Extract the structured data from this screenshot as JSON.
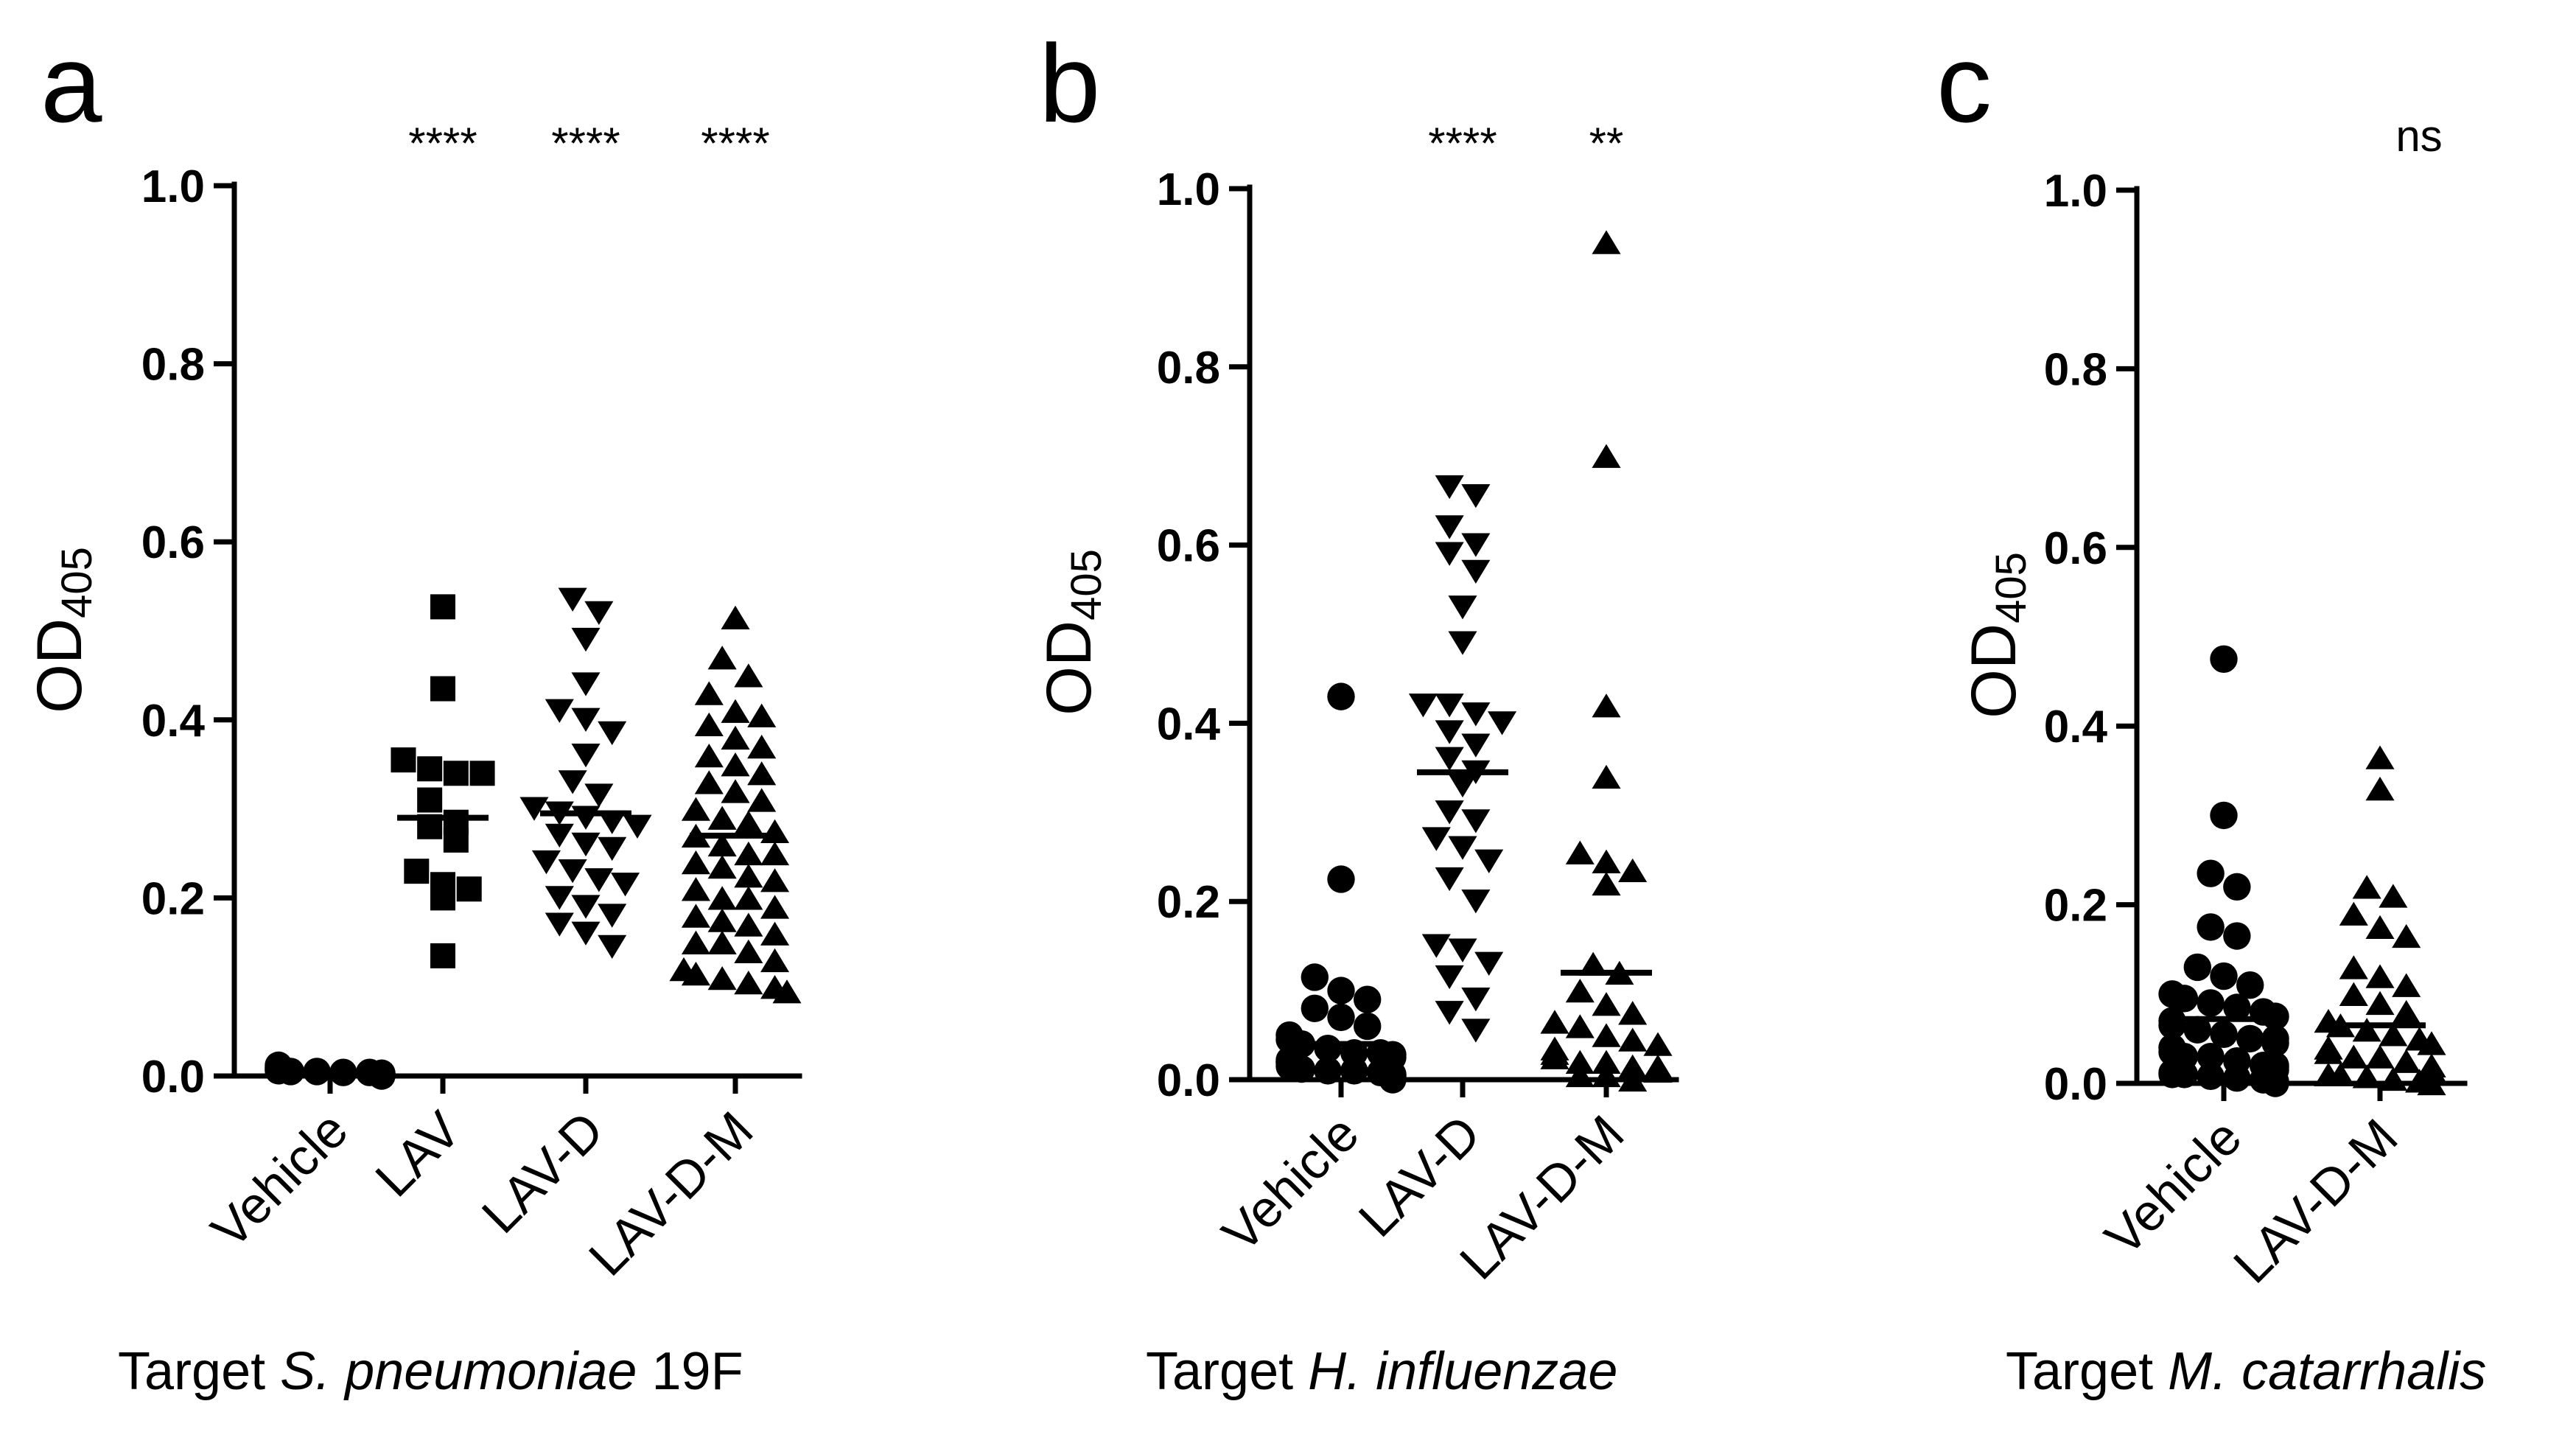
{
  "chart_data": [
    {
      "type": "scatter",
      "panel": "a",
      "ylabel": "OD",
      "ylabel_sub": "405",
      "ylim": [
        0,
        1.0
      ],
      "yticks": [
        "0.0",
        "0.2",
        "0.4",
        "0.6",
        "0.8",
        "1.0"
      ],
      "xtitle_prefix": "Target ",
      "xtitle_species": "S. pneumoniae",
      "xtitle_suffix": " 19F",
      "groups": [
        {
          "name": "Vehicle",
          "marker": "circle",
          "sig": "",
          "mean": 0.005,
          "values": [
            0.012,
            0.01,
            0.008,
            0.006,
            0.005,
            0.004,
            0.003,
            0.002,
            0.001,
            0.0,
            0.007,
            0.009,
            0.004,
            0.003,
            0.002,
            0.001,
            0.006,
            0.005
          ]
        },
        {
          "name": "LAV",
          "marker": "square",
          "sig": "****",
          "mean": 0.29,
          "values": [
            0.527,
            0.435,
            0.355,
            0.345,
            0.34,
            0.34,
            0.31,
            0.285,
            0.28,
            0.265,
            0.23,
            0.215,
            0.21,
            0.2,
            0.135
          ]
        },
        {
          "name": "LAV-D",
          "marker": "triangle-down",
          "sig": "****",
          "mean": 0.295,
          "values": [
            0.535,
            0.52,
            0.49,
            0.44,
            0.41,
            0.4,
            0.385,
            0.36,
            0.33,
            0.315,
            0.3,
            0.295,
            0.29,
            0.285,
            0.28,
            0.27,
            0.26,
            0.255,
            0.24,
            0.23,
            0.22,
            0.215,
            0.2,
            0.19,
            0.18,
            0.17,
            0.16,
            0.145
          ]
        },
        {
          "name": "LAV-D-M",
          "marker": "triangle-up",
          "sig": "****",
          "mean": 0.27,
          "values": [
            0.515,
            0.47,
            0.45,
            0.43,
            0.41,
            0.405,
            0.395,
            0.38,
            0.37,
            0.36,
            0.35,
            0.34,
            0.33,
            0.32,
            0.31,
            0.3,
            0.29,
            0.285,
            0.275,
            0.27,
            0.26,
            0.25,
            0.24,
            0.235,
            0.225,
            0.22,
            0.21,
            0.2,
            0.19,
            0.18,
            0.17,
            0.16,
            0.15,
            0.14,
            0.13,
            0.12,
            0.11,
            0.1,
            0.095,
            0.105,
            0.115,
            0.15,
            0.175,
            0.2,
            0.25
          ]
        }
      ]
    },
    {
      "type": "scatter",
      "panel": "b",
      "ylabel": "OD",
      "ylabel_sub": "405",
      "ylim": [
        0,
        1.0
      ],
      "yticks": [
        "0.0",
        "0.2",
        "0.4",
        "0.6",
        "0.8",
        "1.0"
      ],
      "xtitle_prefix": "Target ",
      "xtitle_species": "H. influenzae",
      "xtitle_suffix": "",
      "groups": [
        {
          "name": "Vehicle",
          "marker": "circle",
          "sig": "",
          "mean": 0.04,
          "values": [
            0.43,
            0.225,
            0.115,
            0.1,
            0.09,
            0.08,
            0.07,
            0.06,
            0.05,
            0.045,
            0.04,
            0.035,
            0.03,
            0.028,
            0.025,
            0.022,
            0.02,
            0.018,
            0.015,
            0.012,
            0.01,
            0.008,
            0.006,
            0.004,
            0.002,
            0.0,
            0.03,
            0.02,
            0.01,
            0.005
          ]
        },
        {
          "name": "LAV-D",
          "marker": "triangle-down",
          "sig": "****",
          "mean": 0.345,
          "values": [
            0.665,
            0.655,
            0.62,
            0.6,
            0.59,
            0.57,
            0.53,
            0.49,
            0.42,
            0.42,
            0.41,
            0.4,
            0.39,
            0.375,
            0.36,
            0.345,
            0.33,
            0.3,
            0.29,
            0.27,
            0.26,
            0.245,
            0.225,
            0.2,
            0.15,
            0.145,
            0.13,
            0.115,
            0.09,
            0.075,
            0.055
          ]
        },
        {
          "name": "LAV-D-M",
          "marker": "triangle-up",
          "sig": "**",
          "mean": 0.12,
          "values": [
            0.94,
            0.7,
            0.42,
            0.34,
            0.255,
            0.245,
            0.235,
            0.22,
            0.13,
            0.12,
            0.1,
            0.085,
            0.075,
            0.065,
            0.06,
            0.05,
            0.045,
            0.04,
            0.035,
            0.03,
            0.025,
            0.02,
            0.015,
            0.01,
            0.005,
            0.0,
            0.02,
            0.01,
            0.015,
            0.005
          ]
        }
      ]
    },
    {
      "type": "scatter",
      "panel": "c",
      "ylabel": "OD",
      "ylabel_sub": "405",
      "ylim": [
        0,
        1.0
      ],
      "yticks": [
        "0.0",
        "0.2",
        "0.4",
        "0.6",
        "0.8",
        "1.0"
      ],
      "xtitle_prefix": "Target ",
      "xtitle_species": "M. catarrhalis",
      "xtitle_suffix": "",
      "sig_shared": "ns",
      "groups": [
        {
          "name": "Vehicle",
          "marker": "circle",
          "sig": "",
          "mean": 0.072,
          "values": [
            0.475,
            0.3,
            0.235,
            0.22,
            0.175,
            0.165,
            0.13,
            0.12,
            0.11,
            0.1,
            0.095,
            0.09,
            0.085,
            0.08,
            0.075,
            0.07,
            0.065,
            0.06,
            0.055,
            0.05,
            0.045,
            0.04,
            0.035,
            0.03,
            0.025,
            0.02,
            0.018,
            0.015,
            0.012,
            0.01,
            0.008,
            0.006,
            0.004,
            0.002,
            0.0,
            0.03,
            0.02,
            0.01,
            0.05,
            0.04
          ]
        },
        {
          "name": "LAV-D-M",
          "marker": "triangle-up",
          "sig": "",
          "mean": 0.065,
          "values": [
            0.365,
            0.33,
            0.22,
            0.21,
            0.19,
            0.175,
            0.165,
            0.13,
            0.12,
            0.11,
            0.1,
            0.09,
            0.08,
            0.07,
            0.065,
            0.06,
            0.055,
            0.05,
            0.045,
            0.04,
            0.035,
            0.03,
            0.025,
            0.02,
            0.015,
            0.01,
            0.008,
            0.005,
            0.003,
            0.0,
            0.02,
            0.01,
            0.04,
            0.03
          ]
        }
      ]
    }
  ]
}
